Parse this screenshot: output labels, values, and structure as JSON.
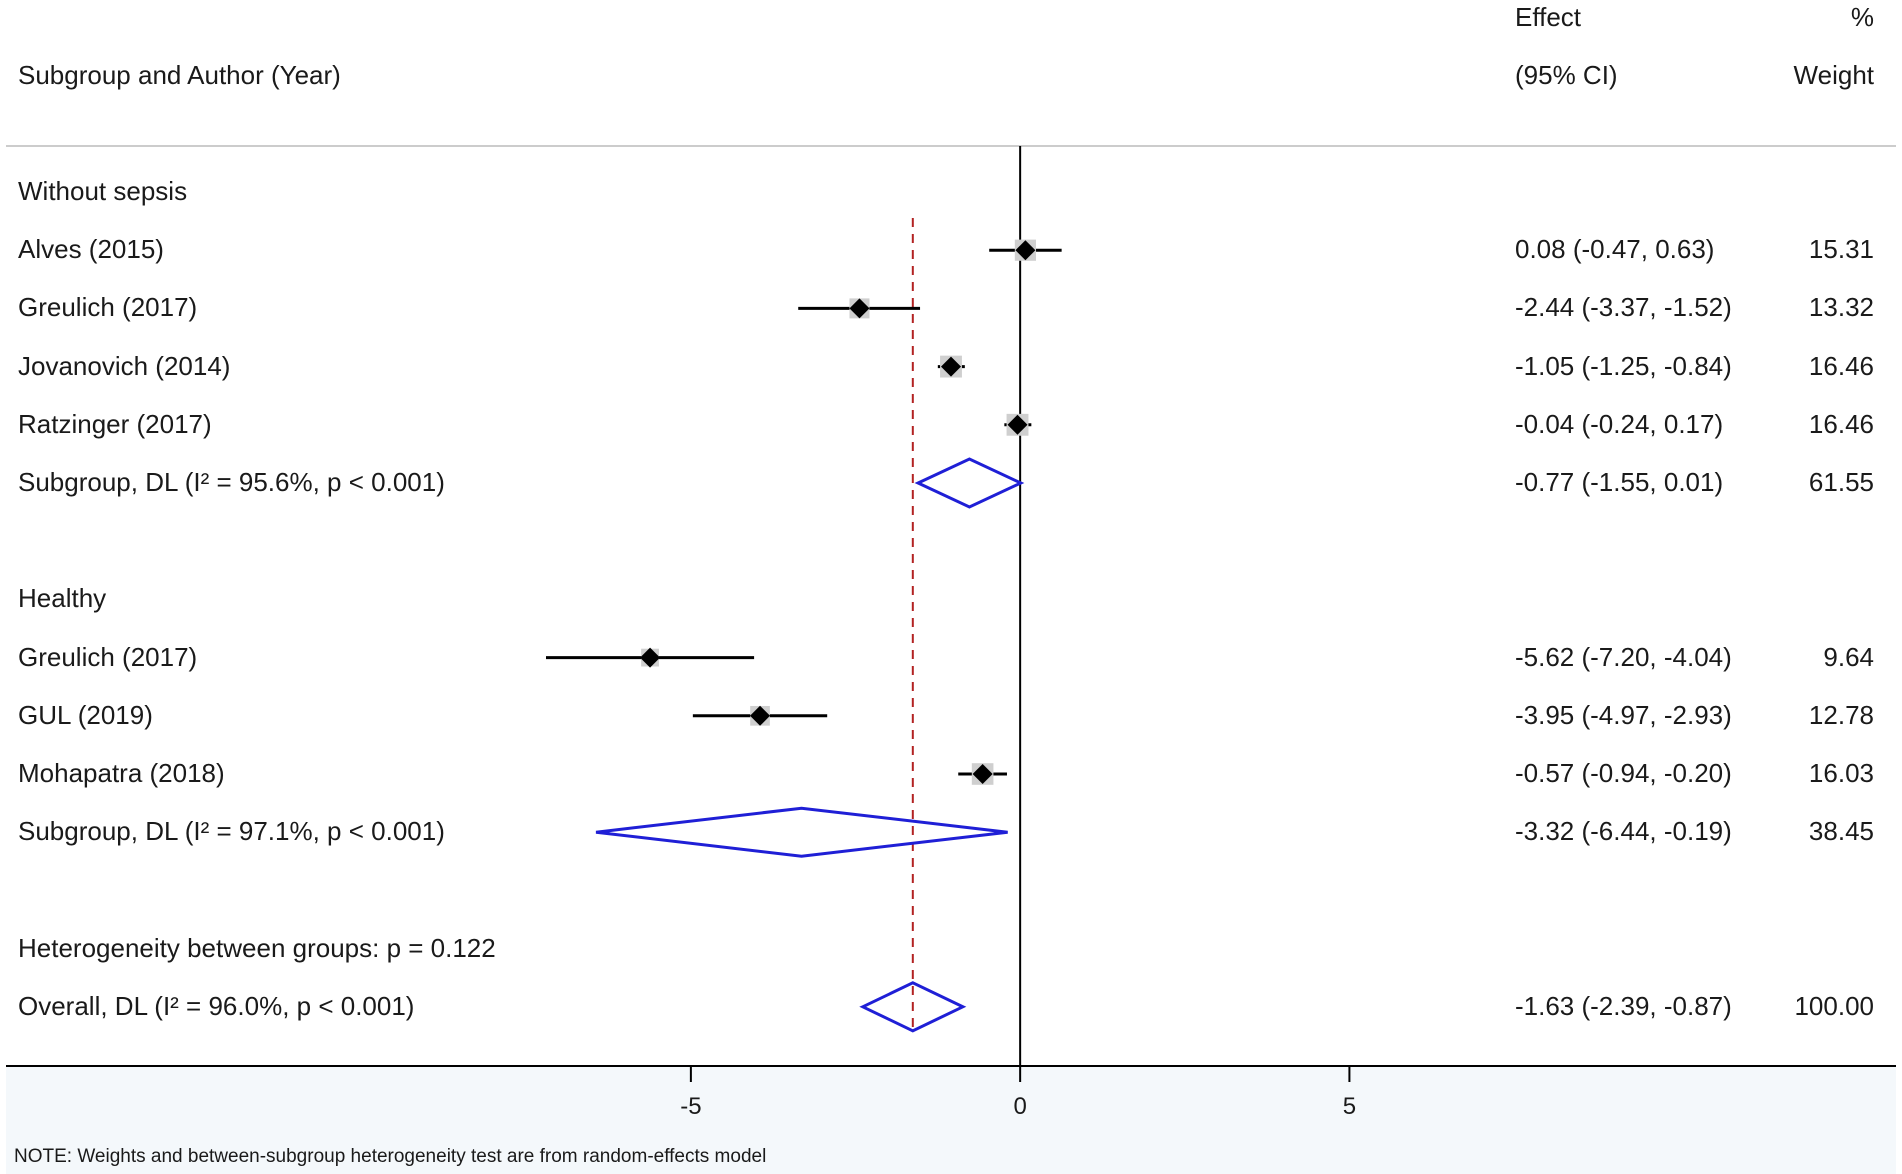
{
  "headers": {
    "label": "Subgroup and Author (Year)",
    "effect_line1": "Effect",
    "effect_line2": "(95% CI)",
    "weight_line1": "%",
    "weight_line2": "Weight"
  },
  "chart_data": {
    "type": "forest",
    "x_ticks": [
      "-5",
      "0",
      "5"
    ],
    "xlim": [
      -15.4,
      13.3
    ],
    "null_line": 0,
    "overall_effect": -1.63,
    "rows": [
      {
        "kind": "group",
        "label": "Without sepsis"
      },
      {
        "kind": "study",
        "label": "Alves (2015)",
        "effect": 0.08,
        "lo": -0.47,
        "hi": 0.63,
        "ci_text": "0.08 (-0.47, 0.63)",
        "weight": "15.31"
      },
      {
        "kind": "study",
        "label": "Greulich (2017)",
        "effect": -2.44,
        "lo": -3.37,
        "hi": -1.52,
        "ci_text": "-2.44 (-3.37, -1.52)",
        "weight": "13.32"
      },
      {
        "kind": "study",
        "label": "Jovanovich (2014)",
        "effect": -1.05,
        "lo": -1.25,
        "hi": -0.84,
        "ci_text": "-1.05 (-1.25, -0.84)",
        "weight": "16.46"
      },
      {
        "kind": "study",
        "label": "Ratzinger (2017)",
        "effect": -0.04,
        "lo": -0.24,
        "hi": 0.17,
        "ci_text": "-0.04 (-0.24, 0.17)",
        "weight": "16.46"
      },
      {
        "kind": "subgroup",
        "label": "Subgroup, DL (I² = 95.6%, p < 0.001)",
        "effect": -0.77,
        "lo": -1.55,
        "hi": 0.01,
        "ci_text": "-0.77 (-1.55, 0.01)",
        "weight": "61.55"
      },
      {
        "kind": "blank"
      },
      {
        "kind": "group",
        "label": "Healthy"
      },
      {
        "kind": "study",
        "label": "Greulich (2017)",
        "effect": -5.62,
        "lo": -7.2,
        "hi": -4.04,
        "ci_text": "-5.62 (-7.20, -4.04)",
        "weight": "9.64"
      },
      {
        "kind": "study",
        "label": "GUL (2019)",
        "effect": -3.95,
        "lo": -4.97,
        "hi": -2.93,
        "ci_text": "-3.95 (-4.97, -2.93)",
        "weight": "12.78"
      },
      {
        "kind": "study",
        "label": "Mohapatra (2018)",
        "effect": -0.57,
        "lo": -0.94,
        "hi": -0.2,
        "ci_text": "-0.57 (-0.94, -0.20)",
        "weight": "16.03"
      },
      {
        "kind": "subgroup",
        "label": "Subgroup, DL (I² = 97.1%, p < 0.001)",
        "effect": -3.32,
        "lo": -6.44,
        "hi": -0.19,
        "ci_text": "-3.32 (-6.44, -0.19)",
        "weight": "38.45"
      },
      {
        "kind": "blank"
      },
      {
        "kind": "group",
        "label": "Heterogeneity between groups: p = 0.122"
      },
      {
        "kind": "overall",
        "label": "Overall, DL (I² = 96.0%, p < 0.001)",
        "effect": -1.63,
        "lo": -2.39,
        "hi": -0.87,
        "ci_text": "-1.63 (-2.39, -0.87)",
        "weight": "100.00"
      }
    ]
  },
  "note": "NOTE: Weights and between-subgroup heterogeneity test are from random-effects model",
  "colors": {
    "diamond": "#1f1fd6",
    "reference_line": "#b22222",
    "marker": "#000000",
    "weight_box": "#cfcfcf",
    "axis_panel": "#f4f8fb",
    "header_rule": "#cccccc"
  }
}
